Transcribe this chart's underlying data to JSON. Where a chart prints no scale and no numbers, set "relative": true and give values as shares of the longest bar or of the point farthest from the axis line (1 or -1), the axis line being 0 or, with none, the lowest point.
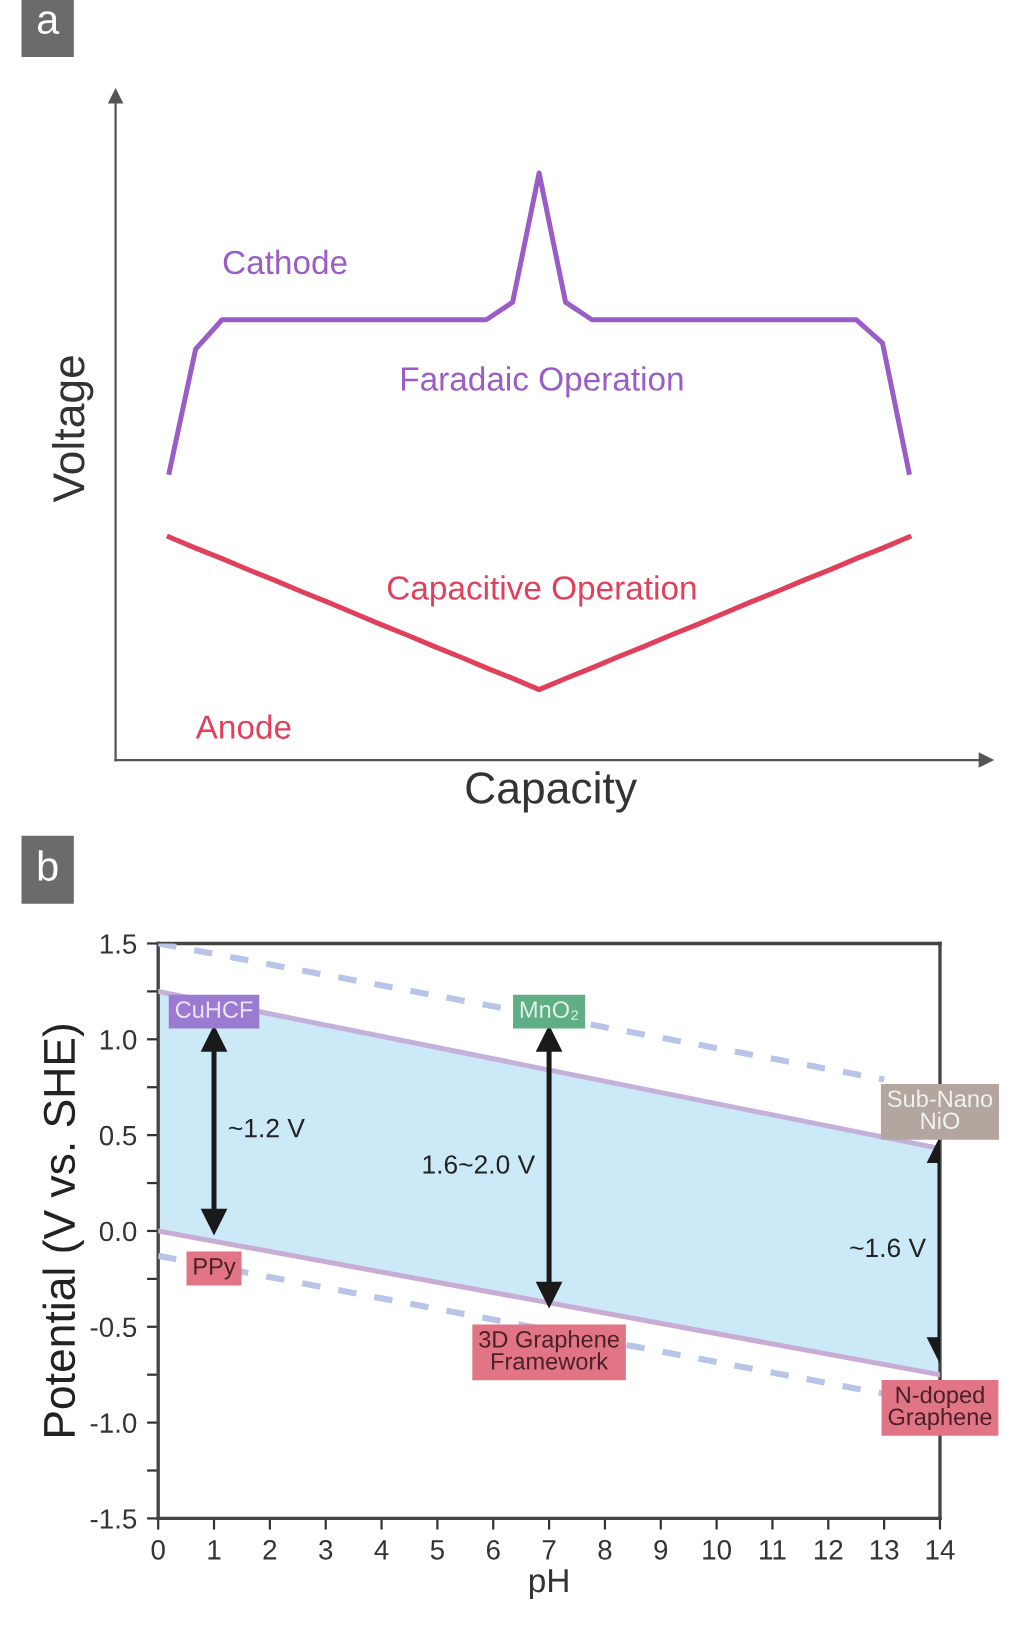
{
  "chart_data": [
    {
      "type": "line",
      "title": "a",
      "xlabel": "Capacity",
      "ylabel": "Voltage",
      "relative": true,
      "categories": [
        null,
        null,
        null,
        null,
        null,
        null,
        null,
        null,
        null,
        null,
        null,
        null,
        null,
        null,
        null,
        null,
        null,
        null,
        null,
        null,
        null,
        null,
        null,
        null,
        null,
        null,
        null,
        null,
        null
      ],
      "series": [
        {
          "name": "Cathode",
          "color": "#9a5cc6",
          "values": [
            0.49,
            0.7,
            0.75,
            0.75,
            0.75,
            0.75,
            0.75,
            0.75,
            0.75,
            0.75,
            0.75,
            0.75,
            0.75,
            0.78,
            1.0,
            0.78,
            0.75,
            0.75,
            0.75,
            0.75,
            0.75,
            0.75,
            0.75,
            0.75,
            0.75,
            0.75,
            0.75,
            0.71,
            0.49
          ]
        },
        {
          "name": "Anode",
          "color": "#e0405a",
          "values": [
            0.38,
            0.361,
            0.343,
            0.324,
            0.306,
            0.287,
            0.269,
            0.25,
            0.231,
            0.213,
            0.194,
            0.176,
            0.157,
            0.139,
            0.12,
            0.139,
            0.157,
            0.176,
            0.194,
            0.213,
            0.231,
            0.25,
            0.269,
            0.287,
            0.306,
            0.324,
            0.343,
            0.361,
            0.38
          ]
        }
      ],
      "annotations": [
        "Faradaic Operation",
        "Capacitive Operation"
      ]
    },
    {
      "type": "line",
      "title": "b",
      "xlabel": "pH",
      "ylabel": "Potential (V vs. SHE)",
      "xlim": [
        0,
        14
      ],
      "ylim": [
        -1.5,
        1.5
      ],
      "xticks": [
        0,
        1,
        2,
        3,
        4,
        5,
        6,
        7,
        8,
        9,
        10,
        11,
        12,
        13,
        14
      ],
      "yticks": [
        {
          "value": -1.5,
          "label": "-1.5"
        },
        {
          "value": -1.25,
          "label": null
        },
        {
          "value": -1.0,
          "label": "-1.0"
        },
        {
          "value": -0.75,
          "label": null
        },
        {
          "value": -0.5,
          "label": "-0.5"
        },
        {
          "value": -0.25,
          "label": null
        },
        {
          "value": 0.0,
          "label": "0.0"
        },
        {
          "value": 0.25,
          "label": null
        },
        {
          "value": 0.5,
          "label": "0.5"
        },
        {
          "value": 0.75,
          "label": null
        },
        {
          "value": 1.0,
          "label": "1.0"
        },
        {
          "value": 1.25,
          "label": null
        },
        {
          "value": 1.5,
          "label": "1.5"
        }
      ],
      "x": [
        0,
        14
      ],
      "series": [
        {
          "color": "#c4b0da",
          "values": [
            1.25,
            0.43
          ],
          "lower": [
            0.0,
            -0.75
          ],
          "upper": [
            1.25,
            0.43
          ]
        },
        {
          "color": "#c8acd4",
          "values": [
            0.0,
            -0.75
          ]
        },
        {
          "color": "#b8c4e8",
          "x": [
            0,
            13
          ],
          "values": [
            1.5,
            0.79
          ],
          "line_style": "dashed"
        },
        {
          "color": "#b8c4e8",
          "x": [
            0,
            13
          ],
          "values": [
            -0.13,
            -0.85
          ],
          "line_style": "dashed"
        },
        {
          "color": "#1a1a1a",
          "x": [
            1,
            1
          ],
          "values": [
            1.0,
            0.05
          ],
          "marker": "triangle"
        },
        {
          "color": "#1a1a1a",
          "x": [
            7,
            7
          ],
          "values": [
            1.0,
            -0.33
          ],
          "marker": "triangle"
        },
        {
          "color": "#1a1a1a",
          "x": [
            14,
            14
          ],
          "values": [
            0.42,
            -0.62
          ],
          "marker": "triangle"
        }
      ],
      "annotations": [
        {
          "text": "CuHCF",
          "x": 1,
          "y": 1.0
        },
        {
          "text": "MnO₂",
          "x": 7,
          "y": 1.0
        },
        {
          "text": "Sub-Nano\nNiO",
          "x": 14,
          "y": 0.42
        },
        {
          "text": "PPy",
          "x": 1,
          "y": 0.05
        },
        {
          "text": "3D Graphene\nFramework",
          "x": 7,
          "y": -0.33
        },
        {
          "text": "N-doped\nGraphene",
          "x": 14,
          "y": -0.62
        },
        {
          "text": "~1.2 V",
          "x": 1,
          "y": 0.525
        },
        {
          "text": "1.6~2.0 V",
          "x": 7,
          "y": 0.335
        },
        {
          "text": "~1.6 V",
          "x": 14,
          "y": -0.1
        }
      ]
    }
  ]
}
